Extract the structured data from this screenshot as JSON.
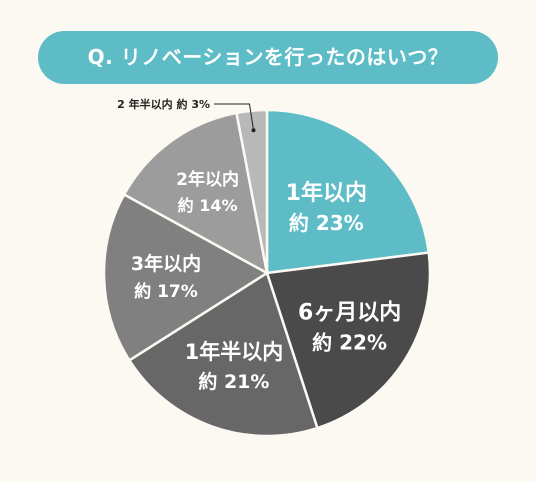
{
  "title": "Q. リノベーションを行ったのはいつ？",
  "chart_data": {
    "type": "pie",
    "start": "12 o'clock",
    "direction": "clockwise",
    "slices": [
      {
        "label": "1年以内",
        "value_text": "約 23%",
        "value": 23,
        "color": "#5dbcc5"
      },
      {
        "label": "6ヶ月以内",
        "value_text": "約 22%",
        "value": 22,
        "color": "#4a4a4a"
      },
      {
        "label": "1年半以内",
        "value_text": "約 21%",
        "value": 21,
        "color": "#676767"
      },
      {
        "label": "3年以内",
        "value_text": "約 17%",
        "value": 17,
        "color": "#808080"
      },
      {
        "label": "2年以内",
        "value_text": "約 14%",
        "value": 14,
        "color": "#9c9c9c"
      },
      {
        "label": "2 年半以内",
        "value_text": "約 3%",
        "value": 3,
        "color": "#b8b8b8"
      }
    ]
  }
}
